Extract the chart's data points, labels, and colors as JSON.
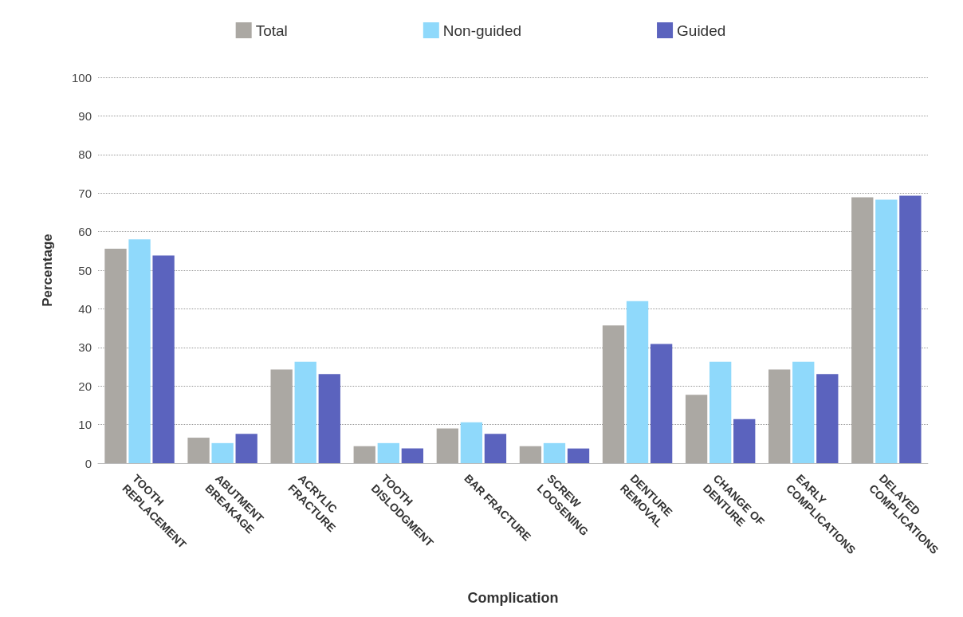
{
  "chart_data": {
    "type": "bar",
    "xlabel": "Complication",
    "ylabel": "Percentage",
    "categories": [
      "TOOTH REPLACEMENT",
      "ABUTMENT BREAKAGE",
      "ACRYLIC FRACTURE",
      "TOOTH DISLODGMENT",
      "BAR FRACTURE",
      "SCREW LOOSENING",
      "DENTURE REMOVAL",
      "CHANGE OF DENTURE",
      "EARLY COMPLICATIONS",
      "DELAYED COMPLICATIONS"
    ],
    "series": [
      {
        "name": "Total",
        "color": "#aba8a3",
        "values": [
          55.6,
          6.6,
          24.3,
          4.4,
          9.0,
          4.4,
          35.7,
          17.7,
          24.3,
          68.9
        ]
      },
      {
        "name": "Non-guided",
        "color": "#8fd9fb",
        "values": [
          58.0,
          5.2,
          26.3,
          5.2,
          10.6,
          5.2,
          42.0,
          26.3,
          26.3,
          68.3
        ]
      },
      {
        "name": "Guided",
        "color": "#5b63be",
        "values": [
          53.8,
          7.6,
          23.1,
          3.8,
          7.6,
          3.8,
          30.9,
          11.4,
          23.1,
          69.3
        ]
      }
    ],
    "ylim": [
      0,
      100
    ],
    "yticks": [
      0,
      10,
      20,
      30,
      40,
      50,
      60,
      70,
      80,
      90,
      100
    ],
    "grid": "y",
    "legend": "top"
  }
}
